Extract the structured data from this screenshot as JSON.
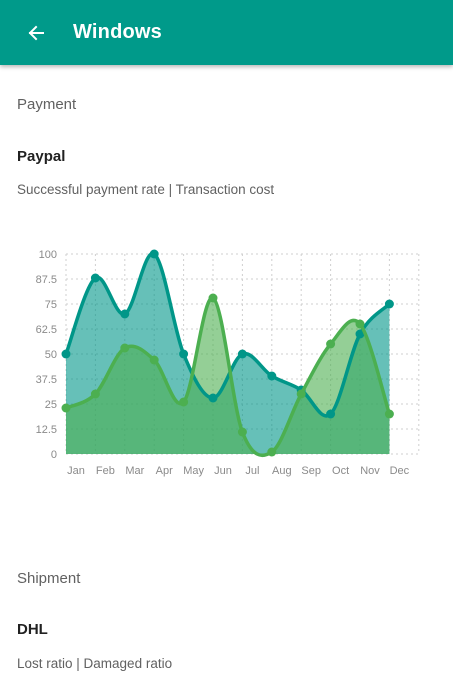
{
  "appbar": {
    "title": "Windows",
    "back_icon": "arrow-left-icon",
    "color": "#009a8a"
  },
  "payment_section": {
    "label": "Payment",
    "card": {
      "title": "Paypal",
      "subtitle": "Successful payment rate | Transaction cost"
    }
  },
  "shipment_section": {
    "label": "Shipment",
    "card": {
      "title": "DHL",
      "subtitle": "Lost ratio | Damaged ratio"
    }
  },
  "chart_data": {
    "type": "area",
    "categories": [
      "Jan",
      "Feb",
      "Mar",
      "Apr",
      "May",
      "Jun",
      "Jul",
      "Aug",
      "Sep",
      "Oct",
      "Nov",
      "Dec"
    ],
    "y_ticks": [
      "0",
      "12.5",
      "25",
      "37.5",
      "50",
      "62.5",
      "75",
      "87.5",
      "100"
    ],
    "ylim": [
      0,
      100
    ],
    "grid": true,
    "series": [
      {
        "values": [
          50,
          88,
          70,
          100,
          50,
          28,
          50,
          39,
          32,
          20,
          60,
          75
        ],
        "color": "#009688",
        "fill": "#009688"
      },
      {
        "values": [
          23,
          30,
          53,
          47,
          26,
          78,
          11,
          1,
          30,
          55,
          65,
          20
        ],
        "color": "#4caf50",
        "fill": "#4caf50"
      }
    ]
  }
}
